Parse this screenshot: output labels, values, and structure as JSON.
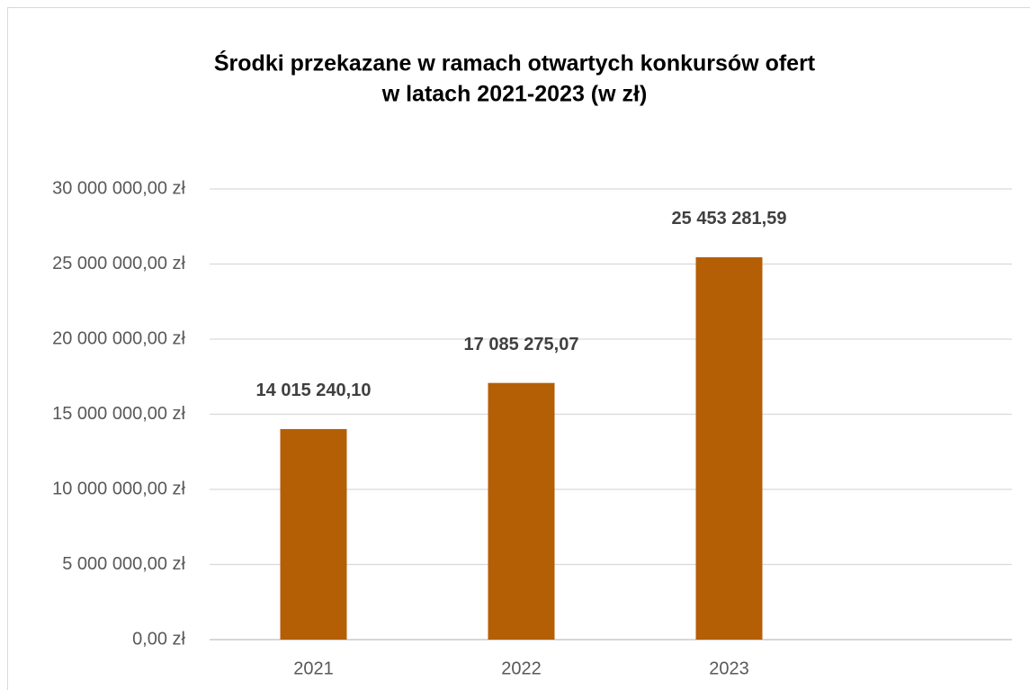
{
  "chart_data": {
    "type": "bar",
    "title": [
      "Środki przekazane w ramach otwartych konkursów ofert",
      "w latach 2021-2023 (w zł)"
    ],
    "categories": [
      "2021",
      "2022",
      "2023"
    ],
    "values": [
      14015240.1,
      17085275.07,
      25453281.59
    ],
    "value_labels": [
      "14 015 240,10",
      "17 085 275,07",
      "25 453 281,59"
    ],
    "color": "#b45f06",
    "ylim": [
      0,
      30000000
    ],
    "yticks": [
      {
        "value": 0,
        "label": "0,00 zł"
      },
      {
        "value": 5000000,
        "label": "5 000 000,00 zł"
      },
      {
        "value": 10000000,
        "label": "10 000 000,00 zł"
      },
      {
        "value": 15000000,
        "label": "15 000 000,00 zł"
      },
      {
        "value": 20000000,
        "label": "20 000 000,00 zł"
      },
      {
        "value": 25000000,
        "label": "25 000 000,00 zł"
      },
      {
        "value": 30000000,
        "label": "30 000 000,00 zł"
      }
    ],
    "grid": true
  }
}
